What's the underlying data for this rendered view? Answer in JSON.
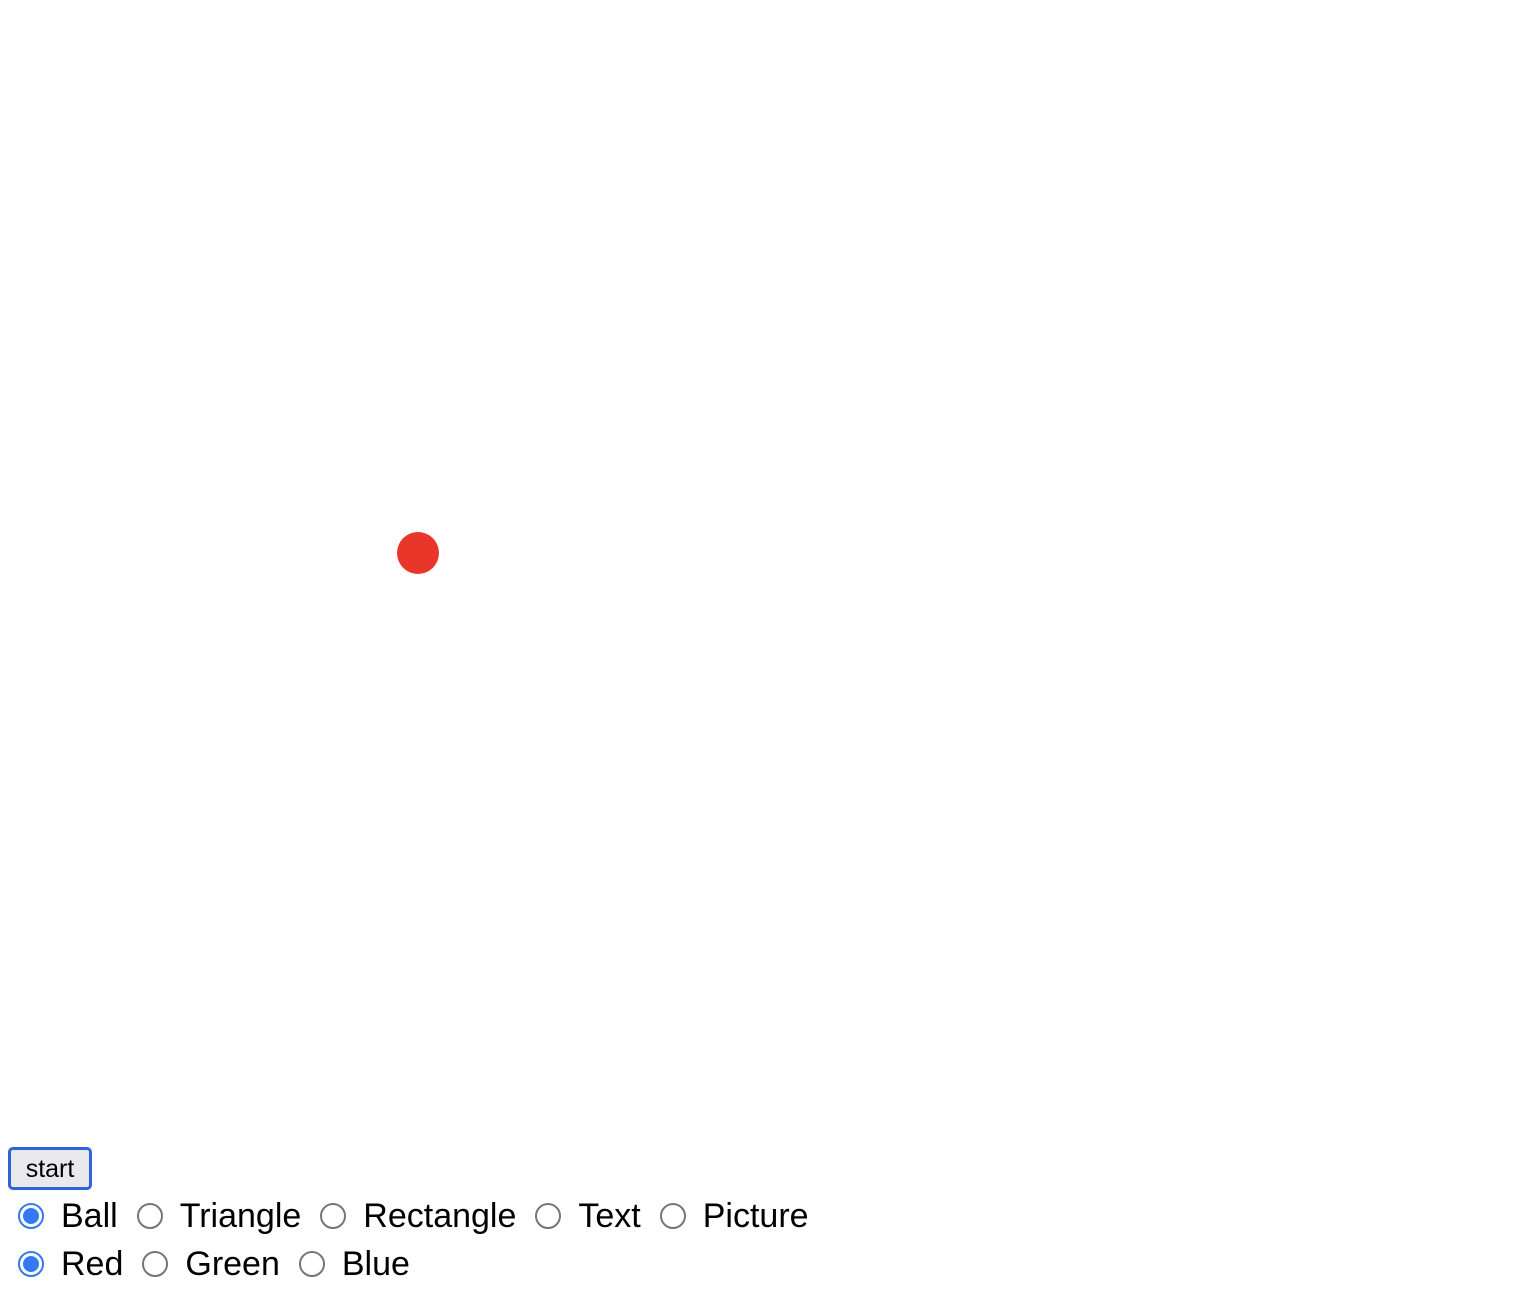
{
  "canvas": {
    "object": {
      "shape": "ball",
      "color": "#e8372a"
    }
  },
  "controls": {
    "start_label": "start",
    "shape_options": [
      {
        "label": "Ball",
        "selected": true
      },
      {
        "label": "Triangle",
        "selected": false
      },
      {
        "label": "Rectangle",
        "selected": false
      },
      {
        "label": "Text",
        "selected": false
      },
      {
        "label": "Picture",
        "selected": false
      }
    ],
    "color_options": [
      {
        "label": "Red",
        "selected": true
      },
      {
        "label": "Green",
        "selected": false
      },
      {
        "label": "Blue",
        "selected": false
      }
    ]
  },
  "colors": {
    "radio_accent": "#3478f6",
    "button_border": "#2f64d6"
  }
}
